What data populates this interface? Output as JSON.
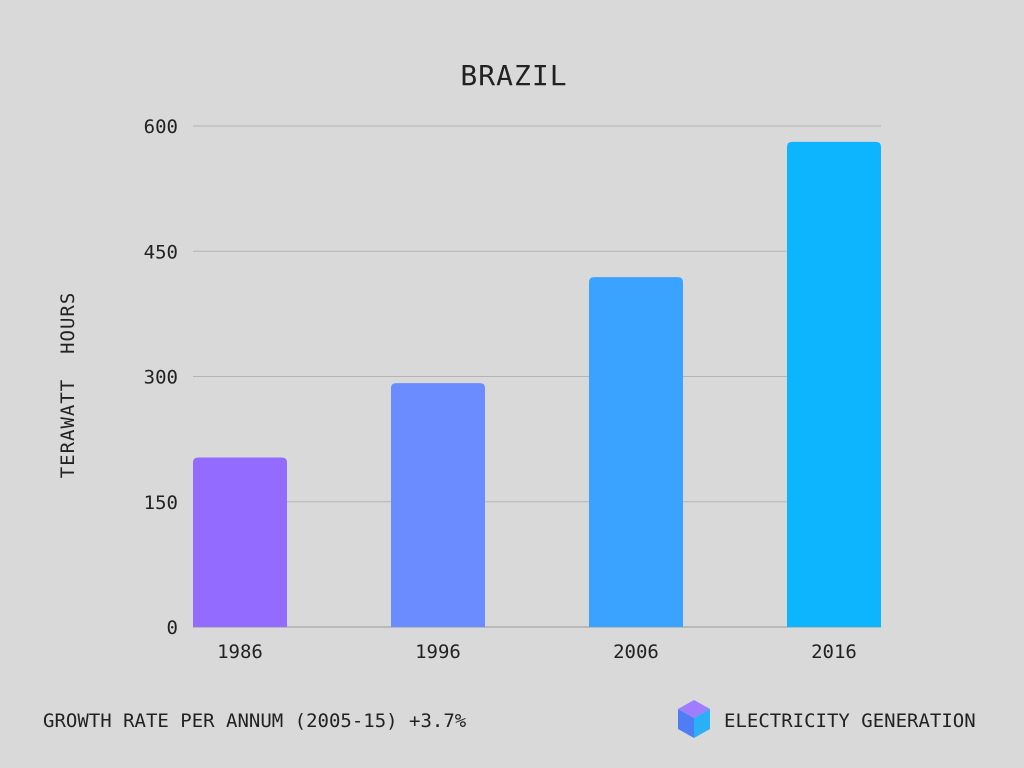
{
  "chart_data": {
    "type": "bar",
    "title": "BRAZIL",
    "xlabel": "",
    "ylabel": "TERAWATT  HOURS",
    "categories": [
      "1986",
      "1996",
      "2006",
      "2016"
    ],
    "values": [
      203,
      292,
      419,
      581
    ],
    "bar_colors": [
      "#936cff",
      "#6b8cff",
      "#3aa3ff",
      "#0db4ff"
    ],
    "ylim": [
      0,
      600
    ],
    "yticks": [
      0,
      150,
      300,
      450,
      600
    ],
    "ytick_labels": [
      "0",
      "150",
      "300",
      "450",
      "600"
    ],
    "grid": true,
    "legend": "none"
  },
  "footer": {
    "growth_text": "GROWTH RATE PER ANNUM (2005-15) +3.7%",
    "brand_text": "ELECTRICITY GENERATION",
    "brand_icon": "cube-icon",
    "brand_colors": {
      "top": "#a07cff",
      "left": "#4f7df5",
      "right": "#2ab0f5"
    }
  }
}
